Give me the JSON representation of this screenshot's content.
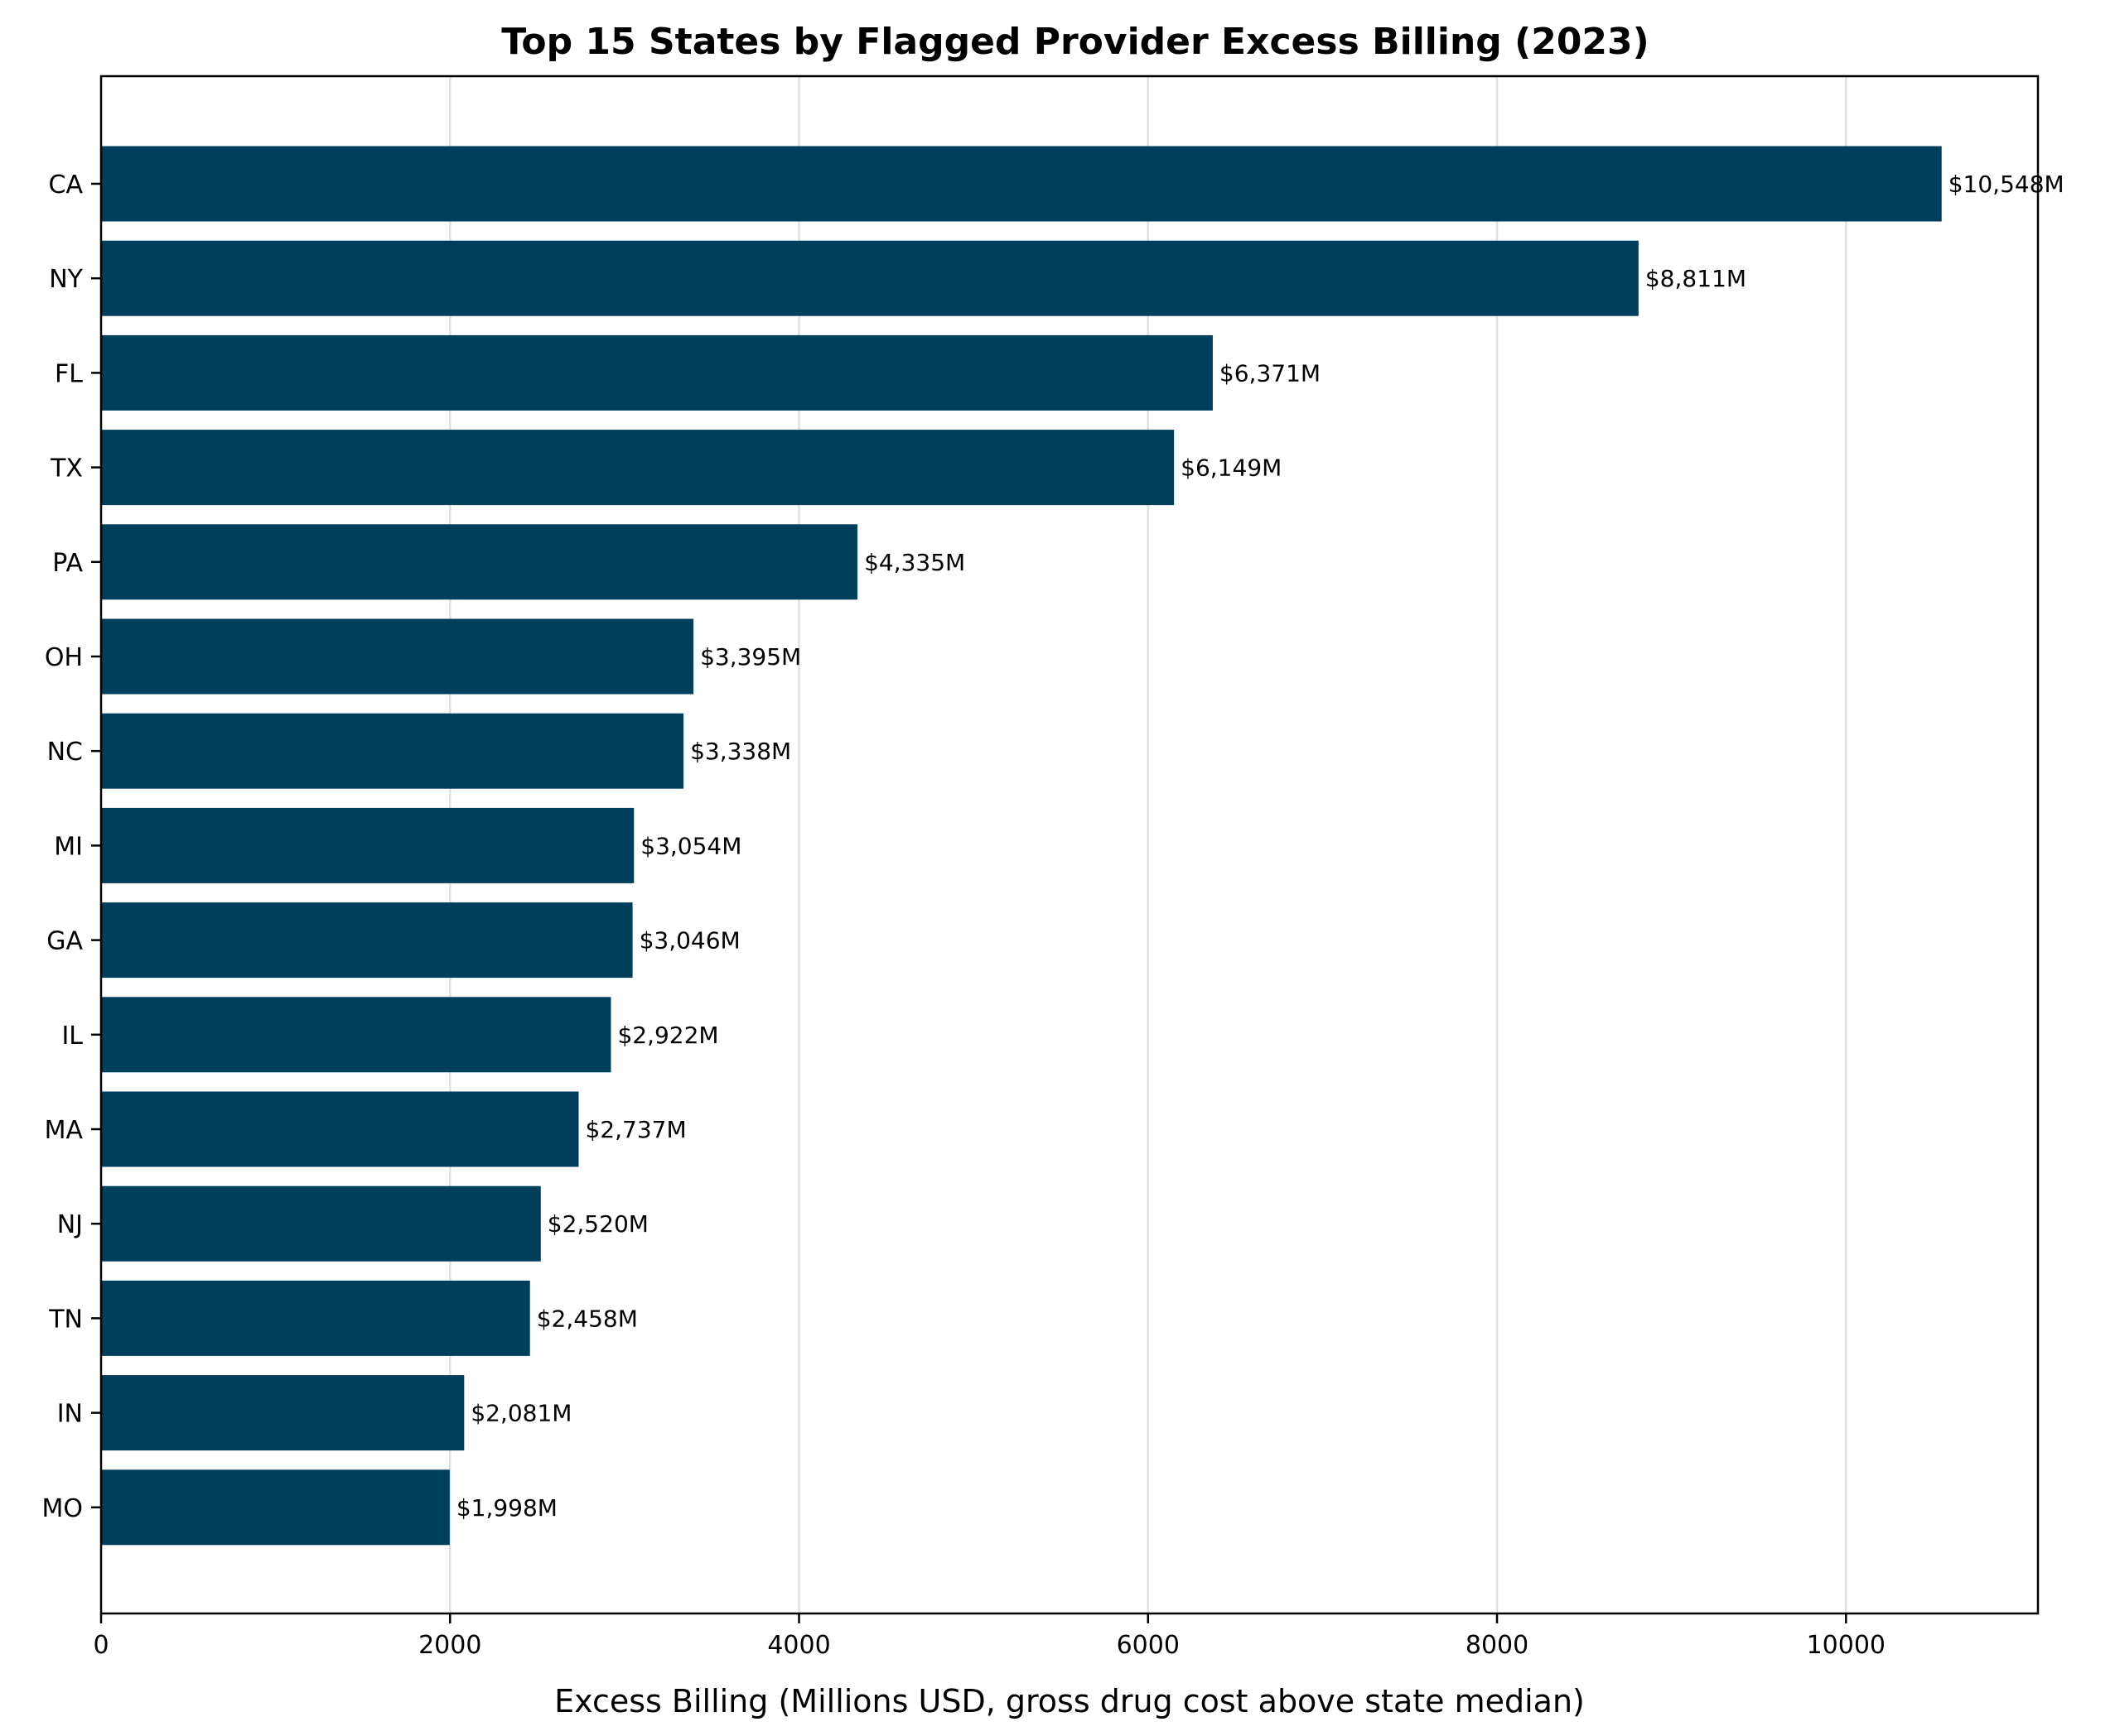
{
  "chart_data": {
    "type": "bar",
    "orientation": "horizontal",
    "title": "Top 15 States by Flagged Provider Excess Billing (2023)",
    "xlabel": "Excess Billing (Millions USD, gross drug cost above state median)",
    "ylabel": "",
    "xlim": [
      0,
      11100
    ],
    "xticks": [
      0,
      2000,
      4000,
      6000,
      8000,
      10000
    ],
    "grid": "x",
    "bar_color": "#003f5c",
    "categories": [
      "CA",
      "NY",
      "FL",
      "TX",
      "PA",
      "OH",
      "NC",
      "MI",
      "GA",
      "IL",
      "MA",
      "NJ",
      "TN",
      "IN",
      "MO"
    ],
    "values": [
      10548,
      8811,
      6371,
      6149,
      4335,
      3395,
      3338,
      3054,
      3046,
      2922,
      2737,
      2520,
      2458,
      2081,
      1998
    ],
    "data_labels": [
      "$10,548M",
      "$8,811M",
      "$6,371M",
      "$6,149M",
      "$4,335M",
      "$3,395M",
      "$3,338M",
      "$3,054M",
      "$3,046M",
      "$2,922M",
      "$2,737M",
      "$2,520M",
      "$2,458M",
      "$2,081M",
      "$1,998M"
    ]
  }
}
